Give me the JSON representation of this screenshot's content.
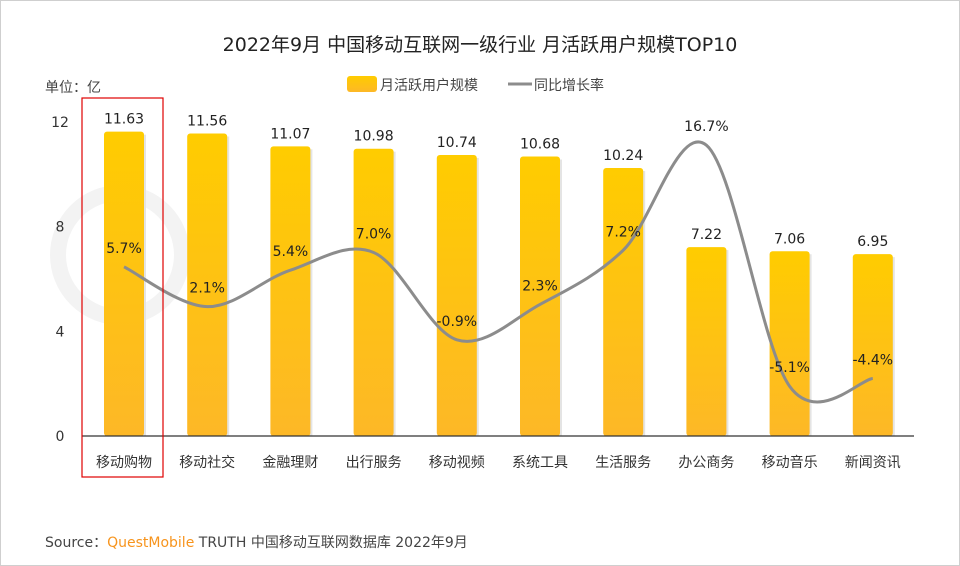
{
  "chart_data": {
    "type": "bar+line",
    "title": "2022年9月 中国移动互联网一级行业 月活跃用户规模TOP10",
    "unit_label": "单位：亿",
    "categories": [
      "移动购物",
      "移动社交",
      "金融理财",
      "出行服务",
      "移动视频",
      "系统工具",
      "生活服务",
      "办公商务",
      "移动音乐",
      "新闻资讯"
    ],
    "series": [
      {
        "name": "月活跃用户规模",
        "type": "bar",
        "axis": "left",
        "values": [
          11.63,
          11.56,
          11.07,
          10.98,
          10.74,
          10.68,
          10.24,
          7.22,
          7.06,
          6.95
        ],
        "labels": [
          "11.63",
          "11.56",
          "11.07",
          "10.98",
          "10.74",
          "10.68",
          "10.24",
          "7.22",
          "7.06",
          "6.95"
        ],
        "color": "#FFC000"
      },
      {
        "name": "同比增长率",
        "type": "line",
        "axis": "right-hidden",
        "values": [
          5.7,
          2.1,
          5.4,
          7.0,
          -0.9,
          2.3,
          7.2,
          16.7,
          -5.1,
          -4.4
        ],
        "labels": [
          "5.7%",
          "2.1%",
          "5.4%",
          "7.0%",
          "-0.9%",
          "2.3%",
          "7.2%",
          "16.7%",
          "-5.1%",
          "-4.4%"
        ],
        "color": "#8C8C8C"
      }
    ],
    "yticks": [
      "0",
      "4",
      "8",
      "12"
    ],
    "ylim": [
      0,
      12
    ],
    "y2lim": [
      -9.6,
      18.8
    ],
    "grid": false,
    "legend": "top-center",
    "highlight_category": "移动购物",
    "highlight_color": "#E00000"
  },
  "source": {
    "prefix": "Source：",
    "brand": "QuestMobile",
    "text": " TRUTH 中国移动互联网数据库 2022年9月",
    "brand_color": "#F7941D"
  },
  "watermark": "QUESTMOBILE"
}
